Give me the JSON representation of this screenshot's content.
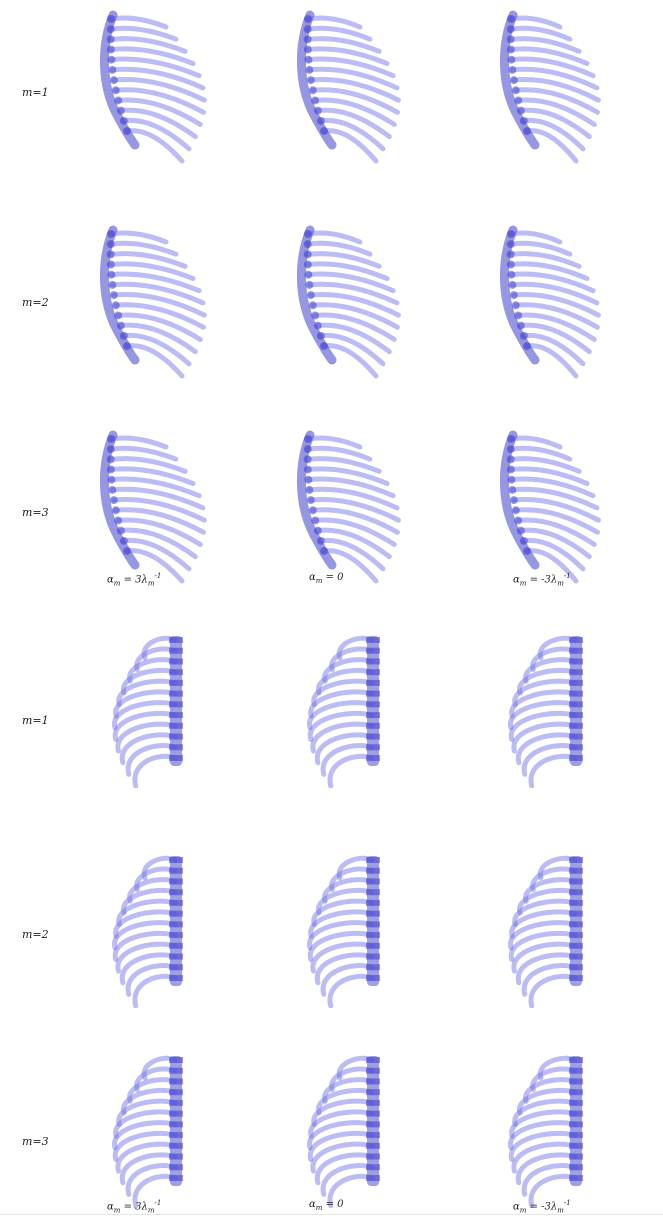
{
  "top": {
    "rows": [
      {
        "label": "m=1"
      },
      {
        "label": "m=2"
      },
      {
        "label": "m=3"
      }
    ],
    "columns": [
      {
        "alpha": "α",
        "sub": "m",
        "eq": " = 3λ",
        "sub2": "m",
        "sup": "-1"
      },
      {
        "alpha": "α",
        "sub": "m",
        "eq": " = 0",
        "sub2": "",
        "sup": ""
      },
      {
        "alpha": "α",
        "sub": "m",
        "eq": " = -3λ",
        "sub2": "m",
        "sup": "-1"
      }
    ]
  },
  "bottom": {
    "rows": [
      {
        "label": "m=1"
      },
      {
        "label": "m=2"
      },
      {
        "label": "m=3"
      }
    ],
    "columns": [
      {
        "alpha": "α",
        "sub": "m",
        "eq": " = 3λ",
        "sub2": "m",
        "sup": "-1"
      },
      {
        "alpha": "α",
        "sub": "m",
        "eq": " = 0",
        "sub2": "",
        "sup": ""
      },
      {
        "alpha": "α",
        "sub": "m",
        "eq": " = -3λ",
        "sub2": "m",
        "sup": "-1"
      }
    ]
  },
  "colors": {
    "bone": "#6a6ae6",
    "spine": "#4040cc",
    "label": "#222222"
  }
}
